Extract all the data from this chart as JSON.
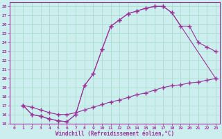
{
  "xlabel": "Windchill (Refroidissement éolien,°C)",
  "bg_color": "#cceeee",
  "line_color": "#993399",
  "grid_color": "#aaddcc",
  "xlim": [
    -0.5,
    23.5
  ],
  "ylim": [
    15,
    28.5
  ],
  "xticks": [
    0,
    1,
    2,
    3,
    4,
    5,
    6,
    7,
    8,
    9,
    10,
    11,
    12,
    13,
    14,
    15,
    16,
    17,
    18,
    19,
    20,
    21,
    22,
    23
  ],
  "yticks": [
    15,
    16,
    17,
    18,
    19,
    20,
    21,
    22,
    23,
    24,
    25,
    26,
    27,
    28
  ],
  "line1_x": [
    1,
    2,
    3,
    4,
    5,
    6,
    7,
    8,
    9,
    10,
    11,
    12,
    13,
    14,
    15,
    16,
    17,
    18,
    23
  ],
  "line1_y": [
    17,
    16,
    15.8,
    15.5,
    15.3,
    15.2,
    16,
    19.2,
    20.5,
    23.2,
    25.8,
    26.5,
    27.2,
    27.5,
    27.8,
    28,
    28,
    27.3,
    20
  ],
  "line2_x": [
    1,
    2,
    3,
    4,
    5,
    6,
    7,
    8,
    9,
    10,
    11,
    12,
    13,
    14,
    15,
    16,
    17,
    18,
    19,
    20,
    21,
    22,
    23
  ],
  "line2_y": [
    17,
    16,
    15.8,
    15.5,
    15.3,
    15.2,
    16,
    19.2,
    20.5,
    23.2,
    25.8,
    26.5,
    27.2,
    27.5,
    27.8,
    28,
    28,
    27.3,
    25.8,
    25.8,
    24,
    23.5,
    23
  ],
  "line3_x": [
    1,
    2,
    3,
    4,
    5,
    6,
    7,
    8,
    9,
    10,
    11,
    12,
    13,
    14,
    15,
    16,
    17,
    18,
    19,
    20,
    21,
    22,
    23
  ],
  "line3_y": [
    17,
    16.8,
    16.5,
    16.2,
    16,
    16,
    16.2,
    16.5,
    16.8,
    17.1,
    17.4,
    17.6,
    17.9,
    18.2,
    18.4,
    18.7,
    19.0,
    19.2,
    19.3,
    19.5,
    19.6,
    19.8,
    20
  ]
}
